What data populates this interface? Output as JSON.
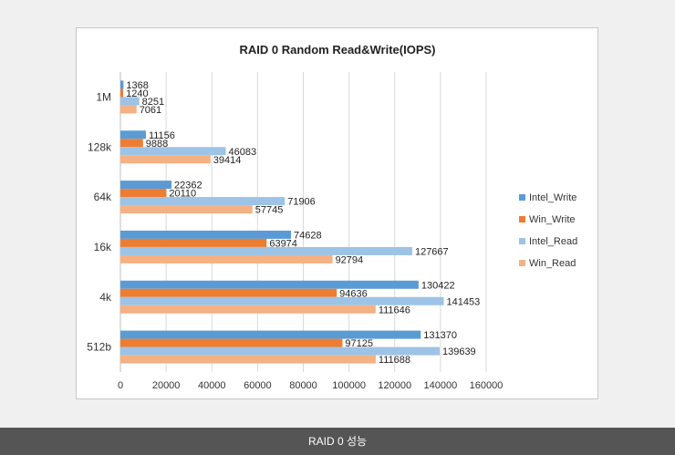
{
  "caption": "RAID 0 성능",
  "chart_data": {
    "type": "bar",
    "orientation": "horizontal",
    "title": "RAID  0 Random Read&Write(IOPS)",
    "categories": [
      "1M",
      "128k",
      "64k",
      "16k",
      "4k",
      "512b"
    ],
    "series": [
      {
        "name": "Intel_Write",
        "color": "#5b9bd5",
        "values": [
          1368,
          11156,
          22362,
          74628,
          130422,
          131370
        ]
      },
      {
        "name": "Win_Write",
        "color": "#ed7d31",
        "values": [
          1240,
          9888,
          20110,
          63974,
          94636,
          97125
        ]
      },
      {
        "name": "Intel_Read",
        "color": "#9dc3e6",
        "values": [
          8251,
          46083,
          71906,
          127667,
          141453,
          139639
        ]
      },
      {
        "name": "Win_Read",
        "color": "#f4b183",
        "values": [
          7061,
          39414,
          57745,
          92794,
          111646,
          111688
        ]
      }
    ],
    "xlim": [
      0,
      160000
    ],
    "xticks": [
      "0",
      "20000",
      "40000",
      "60000",
      "80000",
      "100000",
      "120000",
      "140000",
      "160000"
    ],
    "grid": true,
    "legend": "right"
  }
}
